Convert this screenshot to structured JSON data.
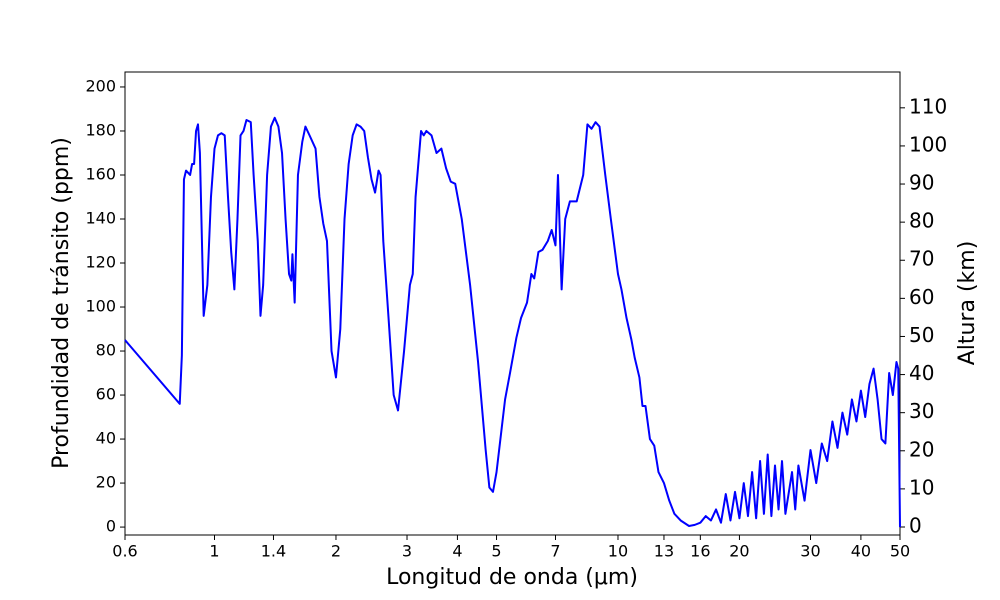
{
  "chart_data": {
    "type": "line",
    "x_label": "Longitud de onda (μm)",
    "y_label": "Profundidad de tránsito (ppm)",
    "y2_label": "Altura (km)",
    "xscale": "log",
    "xlim": [
      0.6,
      50
    ],
    "xticks": [
      0.6,
      1,
      1.4,
      2,
      3,
      4,
      5,
      7,
      10,
      13,
      16,
      20,
      30,
      40,
      50
    ],
    "ylim": [
      -3.6,
      206.8
    ],
    "yticks": [
      0,
      20,
      40,
      60,
      80,
      100,
      120,
      140,
      160,
      180,
      200
    ],
    "y2lim": [
      -2.1,
      119.4
    ],
    "y2ticks": [
      0,
      10,
      20,
      30,
      40,
      50,
      60,
      70,
      80,
      90,
      100,
      110
    ],
    "x": [
      0.6,
      0.82,
      0.83,
      0.84,
      0.85,
      0.87,
      0.88,
      0.89,
      0.9,
      0.91,
      0.92,
      0.94,
      0.96,
      0.98,
      1.0,
      1.02,
      1.04,
      1.06,
      1.08,
      1.1,
      1.12,
      1.14,
      1.16,
      1.18,
      1.2,
      1.23,
      1.25,
      1.28,
      1.3,
      1.32,
      1.35,
      1.38,
      1.41,
      1.44,
      1.47,
      1.5,
      1.53,
      1.55,
      1.56,
      1.58,
      1.61,
      1.65,
      1.68,
      1.72,
      1.78,
      1.82,
      1.86,
      1.9,
      1.95,
      2.0,
      2.05,
      2.1,
      2.15,
      2.2,
      2.25,
      2.3,
      2.35,
      2.4,
      2.45,
      2.5,
      2.55,
      2.58,
      2.62,
      2.7,
      2.78,
      2.85,
      2.95,
      3.05,
      3.1,
      3.15,
      3.25,
      3.3,
      3.35,
      3.45,
      3.55,
      3.65,
      3.75,
      3.85,
      3.95,
      4.1,
      4.3,
      4.5,
      4.7,
      4.8,
      4.9,
      5.0,
      5.15,
      5.25,
      5.4,
      5.6,
      5.75,
      5.95,
      6.1,
      6.2,
      6.35,
      6.5,
      6.7,
      6.85,
      7.0,
      7.1,
      7.25,
      7.4,
      7.6,
      7.9,
      8.2,
      8.4,
      8.6,
      8.8,
      9.0,
      9.3,
      9.6,
      10.0,
      10.2,
      10.5,
      10.8,
      11.0,
      11.3,
      11.5,
      11.7,
      12.0,
      12.3,
      12.6,
      13.0,
      13.4,
      13.8,
      14.3,
      15,
      15.5,
      16,
      16.5,
      17,
      17.5,
      18,
      18.5,
      19,
      19.5,
      20,
      20.5,
      21,
      21.5,
      22,
      22.5,
      23,
      23.5,
      24,
      24.5,
      25,
      25.5,
      26,
      27,
      27.5,
      28,
      29,
      30,
      31,
      32,
      33,
      34,
      35,
      36,
      37,
      38,
      39,
      40,
      41,
      42,
      43,
      44,
      45,
      46,
      47,
      48,
      49,
      49.5,
      50
    ],
    "series": [
      {
        "name": "Profundidad de tránsito",
        "color": "#0000ff",
        "values": [
          85,
          56,
          78,
          158,
          162,
          160,
          165,
          165,
          180,
          183,
          170,
          96,
          110,
          150,
          172,
          178,
          179,
          178,
          150,
          125,
          108,
          140,
          178,
          180,
          185,
          184,
          160,
          130,
          96,
          110,
          160,
          182,
          186,
          182,
          170,
          140,
          115,
          112,
          124,
          102,
          160,
          175,
          182,
          178,
          172,
          150,
          138,
          130,
          80,
          68,
          90,
          140,
          165,
          178,
          183,
          182,
          180,
          168,
          158,
          152,
          162,
          160,
          130,
          95,
          60,
          53,
          80,
          110,
          115,
          150,
          180,
          178,
          180,
          178,
          170,
          172,
          163,
          157,
          156,
          140,
          110,
          75,
          35,
          18,
          16,
          25,
          45,
          58,
          70,
          86,
          95,
          102,
          115,
          113,
          125,
          126,
          130,
          135,
          128,
          160,
          108,
          140,
          148,
          148,
          160,
          183,
          181,
          184,
          182,
          160,
          140,
          115,
          108,
          95,
          85,
          77,
          68,
          55,
          55,
          40,
          37,
          25,
          20,
          12,
          6,
          3,
          0.5,
          1,
          2,
          5,
          3,
          8,
          2,
          15,
          3,
          16,
          4,
          20,
          5,
          25,
          4,
          30,
          6,
          33,
          5,
          28,
          8,
          30,
          6,
          25,
          8,
          28,
          12,
          35,
          20,
          38,
          30,
          48,
          36,
          52,
          42,
          58,
          48,
          62,
          50,
          65,
          72,
          58,
          40,
          38,
          70,
          60,
          75,
          72,
          0
        ]
      }
    ]
  }
}
